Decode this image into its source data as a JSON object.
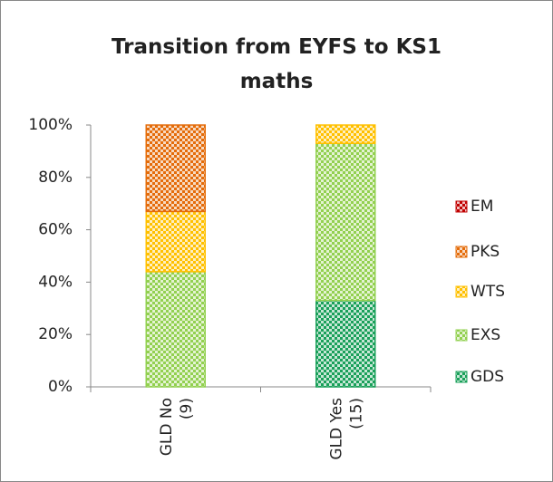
{
  "chart_data": {
    "type": "stacked_bar",
    "title": "Transition from EYFS to KS1 maths",
    "categories": [
      "GLD No (9)",
      "GLD Yes (15)"
    ],
    "series": [
      {
        "name": "GDS",
        "color": "#1aa05a",
        "values": [
          0,
          33
        ]
      },
      {
        "name": "EXS",
        "color": "#92d050",
        "values": [
          44,
          60
        ]
      },
      {
        "name": "WTS",
        "color": "#ffc000",
        "values": [
          23,
          7
        ]
      },
      {
        "name": "PKS",
        "color": "#e46c0a",
        "values": [
          33,
          0
        ]
      },
      {
        "name": "EM",
        "color": "#c00000",
        "values": [
          0,
          0
        ]
      }
    ],
    "ylim": [
      0,
      100
    ],
    "yticks": [
      {
        "value": 0,
        "label": "0%"
      },
      {
        "value": 20,
        "label": "20%"
      },
      {
        "value": 40,
        "label": "40%"
      },
      {
        "value": 60,
        "label": "60%"
      },
      {
        "value": 80,
        "label": "80%"
      },
      {
        "value": 100,
        "label": "100%"
      }
    ],
    "legend": "right",
    "grid": false
  }
}
